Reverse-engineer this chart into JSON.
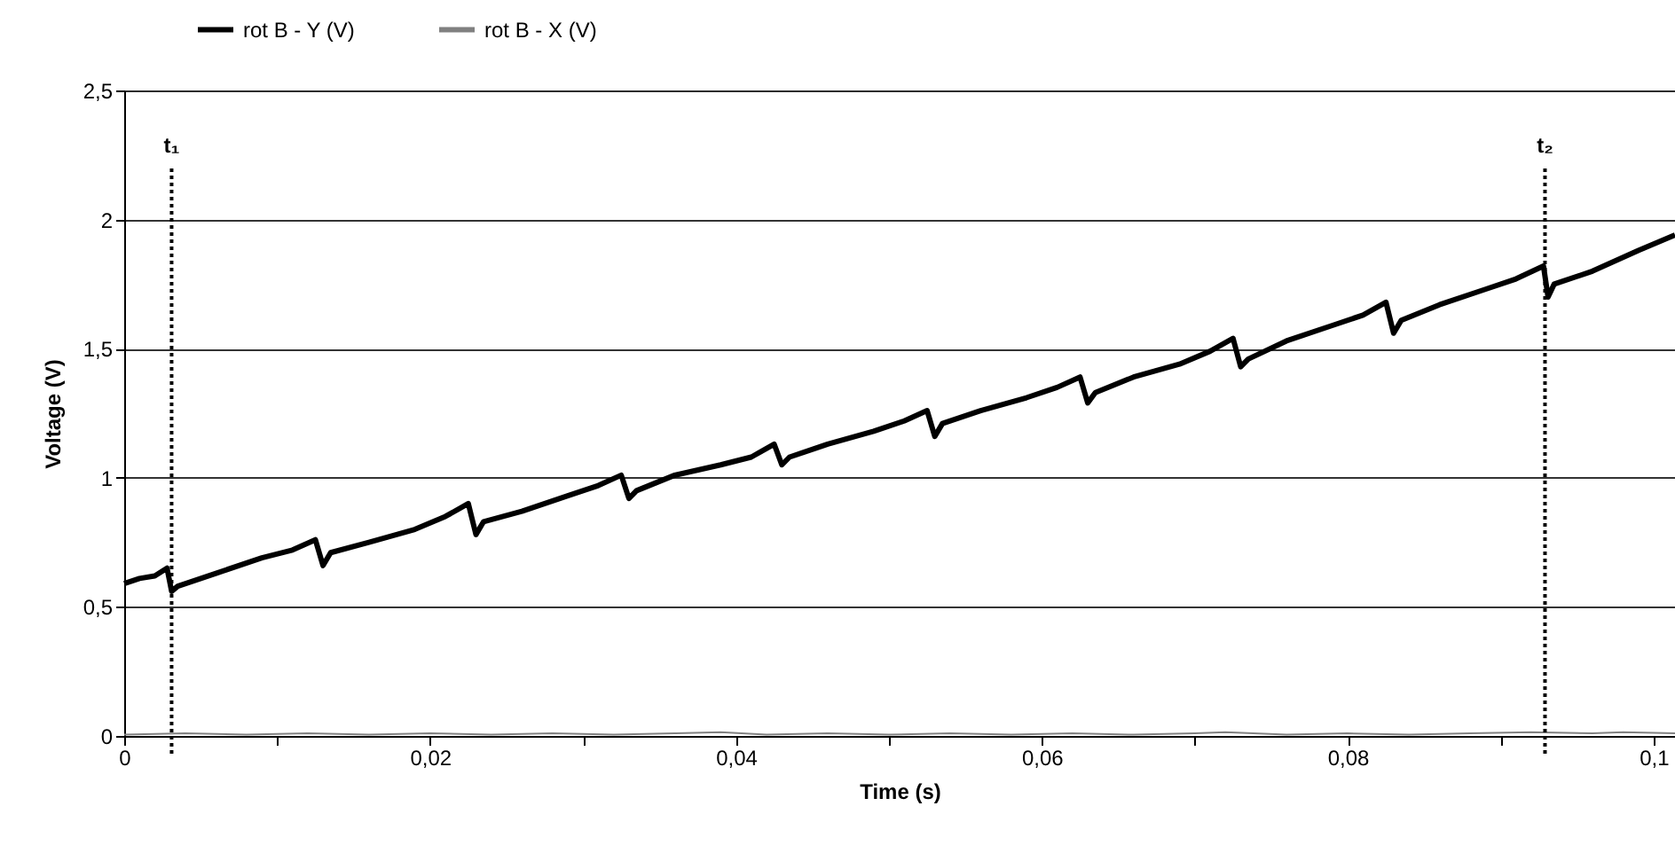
{
  "chart_data": {
    "type": "line",
    "xlabel": "Time (s)",
    "ylabel": "Voltage (V)",
    "xlim": [
      0,
      0.1014
    ],
    "ylim": [
      0,
      2.5
    ],
    "xticks": [
      {
        "value": 0,
        "label": "0"
      },
      {
        "value": 0.01,
        "label": null
      },
      {
        "value": 0.02,
        "label": "0,02"
      },
      {
        "value": 0.03,
        "label": null
      },
      {
        "value": 0.04,
        "label": "0,04"
      },
      {
        "value": 0.05,
        "label": null
      },
      {
        "value": 0.06,
        "label": "0,06"
      },
      {
        "value": 0.07,
        "label": null
      },
      {
        "value": 0.08,
        "label": "0,08"
      },
      {
        "value": 0.09,
        "label": null
      },
      {
        "value": 0.1,
        "label": "0,1"
      }
    ],
    "yticks": [
      {
        "value": 0,
        "label": "0"
      },
      {
        "value": 0.5,
        "label": "0,5"
      },
      {
        "value": 1,
        "label": "1"
      },
      {
        "value": 1.5,
        "label": "1,5"
      },
      {
        "value": 2,
        "label": "2"
      },
      {
        "value": 2.5,
        "label": "2,5"
      }
    ],
    "grid": "y",
    "legend": "top left",
    "marker": "none",
    "line_style": "solid",
    "ref_lines": [
      {
        "axis": "x",
        "value": 0.0031,
        "label": "t₁",
        "color": "#000000",
        "line_style": "dotted"
      },
      {
        "axis": "x",
        "value": 0.0929,
        "label": "t₂",
        "color": "#000000",
        "line_style": "dotted"
      }
    ],
    "series": [
      {
        "name": "rot B - Y (V)",
        "color": "#000000",
        "x": [
          0,
          0.001,
          0.002,
          0.0028,
          0.0031,
          0.0035,
          0.006,
          0.009,
          0.011,
          0.0125,
          0.013,
          0.0135,
          0.016,
          0.019,
          0.021,
          0.0225,
          0.023,
          0.0235,
          0.026,
          0.029,
          0.031,
          0.0325,
          0.033,
          0.0335,
          0.036,
          0.039,
          0.041,
          0.0425,
          0.043,
          0.0435,
          0.046,
          0.049,
          0.051,
          0.0525,
          0.053,
          0.0535,
          0.056,
          0.059,
          0.061,
          0.0625,
          0.063,
          0.0635,
          0.066,
          0.069,
          0.071,
          0.0725,
          0.073,
          0.0735,
          0.076,
          0.079,
          0.081,
          0.0825,
          0.083,
          0.0835,
          0.086,
          0.089,
          0.091,
          0.0928,
          0.0931,
          0.0935,
          0.096,
          0.099,
          0.1014
        ],
        "values": [
          0.59,
          0.61,
          0.62,
          0.65,
          0.56,
          0.58,
          0.63,
          0.69,
          0.72,
          0.76,
          0.66,
          0.71,
          0.75,
          0.8,
          0.85,
          0.9,
          0.78,
          0.83,
          0.87,
          0.93,
          0.97,
          1.01,
          0.92,
          0.95,
          1.01,
          1.05,
          1.08,
          1.13,
          1.05,
          1.08,
          1.13,
          1.18,
          1.22,
          1.26,
          1.16,
          1.21,
          1.26,
          1.31,
          1.35,
          1.39,
          1.29,
          1.33,
          1.39,
          1.44,
          1.49,
          1.54,
          1.43,
          1.46,
          1.53,
          1.59,
          1.63,
          1.68,
          1.56,
          1.61,
          1.67,
          1.73,
          1.77,
          1.82,
          1.7,
          1.75,
          1.8,
          1.88,
          1.94
        ]
      },
      {
        "name": "rot B - X (V)",
        "color": "#808080",
        "x": [
          0,
          0.004,
          0.008,
          0.012,
          0.016,
          0.02,
          0.024,
          0.028,
          0.032,
          0.036,
          0.039,
          0.042,
          0.046,
          0.05,
          0.054,
          0.058,
          0.062,
          0.066,
          0.07,
          0.072,
          0.076,
          0.08,
          0.084,
          0.088,
          0.092,
          0.096,
          0.098,
          0.1014
        ],
        "values": [
          0.005,
          0.01,
          0.005,
          0.01,
          0.005,
          0.01,
          0.005,
          0.01,
          0.005,
          0.01,
          0.015,
          0.005,
          0.01,
          0.005,
          0.01,
          0.005,
          0.01,
          0.005,
          0.01,
          0.015,
          0.005,
          0.01,
          0.005,
          0.01,
          0.015,
          0.01,
          0.015,
          0.01
        ]
      }
    ]
  }
}
